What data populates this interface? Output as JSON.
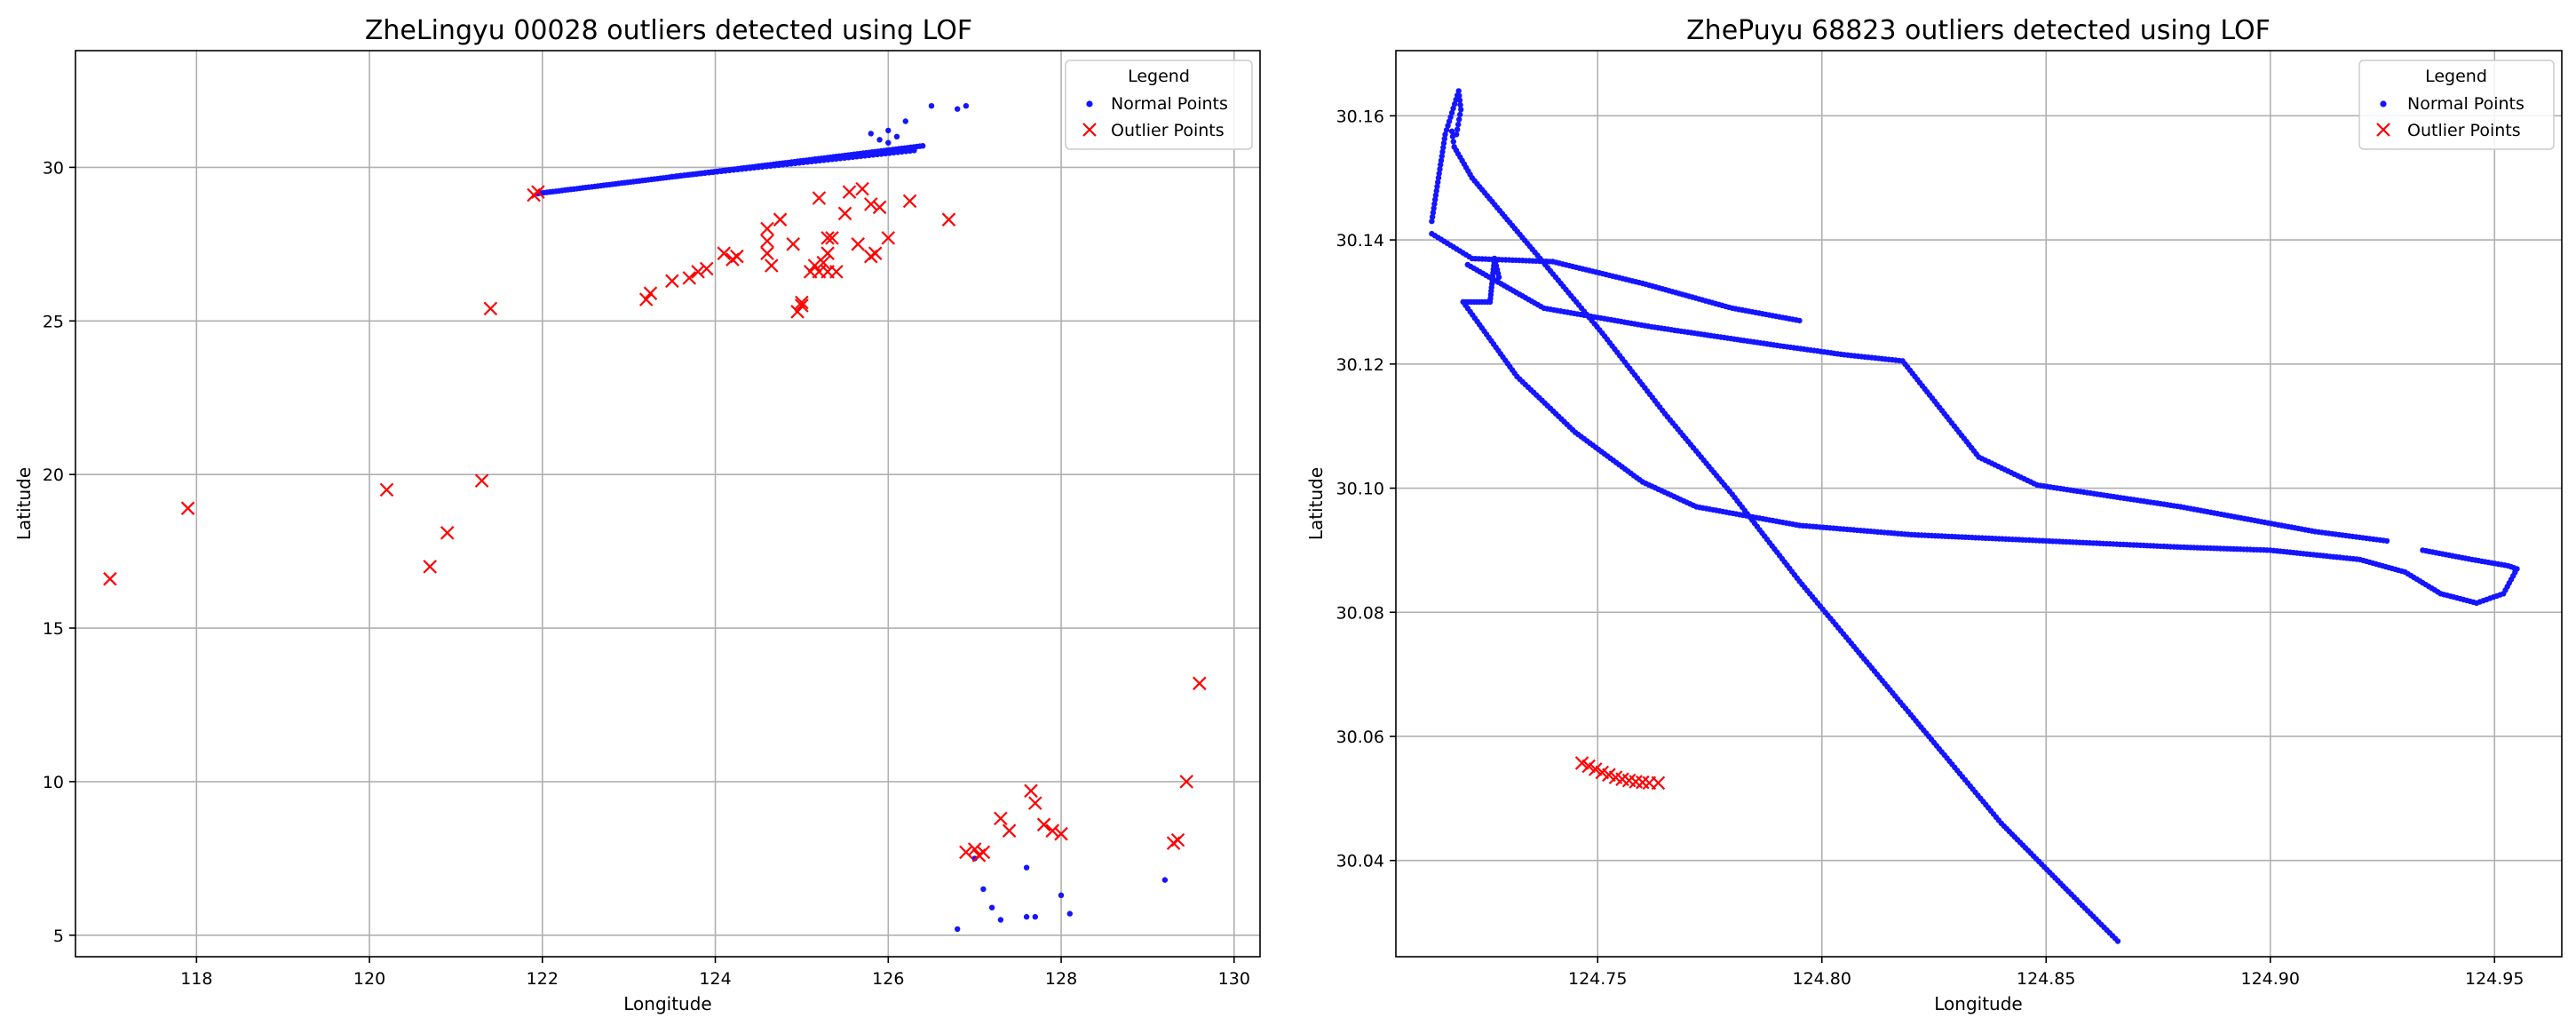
{
  "colors": {
    "normal": "#1515ff",
    "outlier": "#ff0000"
  },
  "chart_data": [
    {
      "type": "scatter",
      "title": "ZheLingyu 00028 outliers detected using LOF",
      "xlabel": "Longitude",
      "ylabel": "Latitude",
      "xlim": [
        116.6,
        130.3
      ],
      "ylim": [
        4.3,
        33.8
      ],
      "xticks": [
        118,
        120,
        122,
        124,
        126,
        128,
        130
      ],
      "xtick_labels": [
        "118",
        "120",
        "122",
        "124",
        "126",
        "128",
        "130"
      ],
      "yticks": [
        5,
        10,
        15,
        20,
        25,
        30
      ],
      "ytick_labels": [
        "5",
        "10",
        "15",
        "20",
        "25",
        "30"
      ],
      "grid": true,
      "legend": {
        "title": "Legend",
        "placement": "top-right",
        "entries": [
          "Normal Points",
          "Outlier Points"
        ]
      },
      "series": [
        {
          "name": "Normal Points",
          "marker": "dot",
          "segments": [
            {
              "from": [
                121.95,
                29.15
              ],
              "to": [
                126.4,
                30.7
              ],
              "n": 130
            },
            {
              "from": [
                123.5,
                29.7
              ],
              "to": [
                126.3,
                30.55
              ],
              "n": 60
            }
          ],
          "points": [
            [
              126.5,
              32.0
            ],
            [
              126.8,
              31.9
            ],
            [
              126.9,
              32.0
            ],
            [
              126.2,
              31.5
            ],
            [
              126.0,
              31.2
            ],
            [
              125.9,
              30.9
            ],
            [
              125.8,
              31.1
            ],
            [
              126.1,
              31.0
            ],
            [
              126.0,
              30.8
            ],
            [
              127.0,
              7.5
            ],
            [
              127.1,
              6.5
            ],
            [
              127.2,
              5.9
            ],
            [
              127.3,
              5.5
            ],
            [
              126.8,
              5.2
            ],
            [
              127.6,
              7.2
            ],
            [
              127.6,
              5.6
            ],
            [
              127.7,
              5.6
            ],
            [
              128.0,
              6.3
            ],
            [
              128.1,
              5.7
            ],
            [
              129.2,
              6.8
            ]
          ]
        },
        {
          "name": "Outlier Points",
          "marker": "x",
          "points": [
            [
              117.0,
              16.6
            ],
            [
              117.9,
              18.9
            ],
            [
              120.2,
              19.5
            ],
            [
              120.7,
              17.0
            ],
            [
              120.9,
              18.1
            ],
            [
              121.3,
              19.8
            ],
            [
              121.4,
              25.4
            ],
            [
              121.9,
              29.1
            ],
            [
              121.95,
              29.2
            ],
            [
              123.2,
              25.7
            ],
            [
              123.25,
              25.9
            ],
            [
              123.5,
              26.3
            ],
            [
              123.7,
              26.4
            ],
            [
              123.8,
              26.6
            ],
            [
              123.9,
              26.7
            ],
            [
              124.1,
              27.2
            ],
            [
              124.2,
              27.0
            ],
            [
              124.25,
              27.1
            ],
            [
              124.6,
              27.2
            ],
            [
              124.6,
              27.6
            ],
            [
              124.6,
              28.0
            ],
            [
              124.65,
              26.8
            ],
            [
              124.75,
              28.3
            ],
            [
              124.9,
              27.5
            ],
            [
              124.95,
              25.3
            ],
            [
              125.0,
              25.5
            ],
            [
              125.0,
              25.6
            ],
            [
              125.1,
              26.6
            ],
            [
              125.15,
              26.8
            ],
            [
              125.2,
              26.6
            ],
            [
              125.25,
              26.9
            ],
            [
              125.3,
              27.2
            ],
            [
              125.3,
              26.6
            ],
            [
              125.4,
              26.6
            ],
            [
              125.2,
              29.0
            ],
            [
              125.3,
              27.7
            ],
            [
              125.35,
              27.7
            ],
            [
              125.5,
              28.5
            ],
            [
              125.55,
              29.2
            ],
            [
              125.7,
              29.3
            ],
            [
              125.65,
              27.5
            ],
            [
              125.8,
              27.1
            ],
            [
              125.85,
              27.2
            ],
            [
              125.8,
              28.8
            ],
            [
              125.9,
              28.7
            ],
            [
              126.0,
              27.7
            ],
            [
              126.25,
              28.9
            ],
            [
              126.7,
              28.3
            ],
            [
              126.9,
              7.7
            ],
            [
              127.0,
              7.8
            ],
            [
              127.05,
              7.6
            ],
            [
              127.1,
              7.7
            ],
            [
              127.3,
              8.8
            ],
            [
              127.4,
              8.4
            ],
            [
              127.65,
              9.7
            ],
            [
              127.7,
              9.3
            ],
            [
              127.8,
              8.6
            ],
            [
              127.9,
              8.4
            ],
            [
              128.0,
              8.3
            ],
            [
              129.3,
              8.0
            ],
            [
              129.35,
              8.1
            ],
            [
              129.45,
              10.0
            ],
            [
              129.6,
              13.2
            ]
          ]
        }
      ]
    },
    {
      "type": "scatter",
      "title": "ZhePuyu 68823 outliers detected using LOF",
      "xlabel": "Longitude",
      "ylabel": "Latitude",
      "xlim": [
        124.705,
        124.965
      ],
      "ylim": [
        30.0245,
        30.1705
      ],
      "xticks": [
        124.75,
        124.8,
        124.85,
        124.9,
        124.95
      ],
      "xtick_labels": [
        "124.75",
        "124.80",
        "124.85",
        "124.90",
        "124.95"
      ],
      "yticks": [
        30.04,
        30.06,
        30.08,
        30.1,
        30.12,
        30.14,
        30.16
      ],
      "ytick_labels": [
        "30.04",
        "30.06",
        "30.08",
        "30.10",
        "30.12",
        "30.14",
        "30.16"
      ],
      "grid": true,
      "legend": {
        "title": "Legend",
        "placement": "top-right",
        "entries": [
          "Normal Points",
          "Outlier Points"
        ]
      },
      "series": [
        {
          "name": "Normal Points",
          "marker": "dot",
          "paths": [
            {
              "points": [
                [
                  124.713,
                  30.143
                ],
                [
                  124.7145,
                  30.15
                ],
                [
                  124.716,
                  30.157
                ],
                [
                  124.719,
                  30.164
                ],
                [
                  124.7195,
                  30.161
                ],
                [
                  124.7185,
                  30.157
                ],
                [
                  124.7175,
                  30.1575
                ],
                [
                  124.718,
                  30.155
                ],
                [
                  124.722,
                  30.15
                ],
                [
                  124.736,
                  30.138
                ],
                [
                  124.751,
                  30.125
                ],
                [
                  124.765,
                  30.112
                ],
                [
                  124.78,
                  30.099
                ],
                [
                  124.795,
                  30.085
                ],
                [
                  124.81,
                  30.072
                ],
                [
                  124.825,
                  30.059
                ],
                [
                  124.84,
                  30.046
                ],
                [
                  124.855,
                  30.035
                ],
                [
                  124.866,
                  30.027
                ]
              ],
              "step": 0.00075
            },
            {
              "points": [
                [
                  124.713,
                  30.141
                ],
                [
                  124.722,
                  30.137
                ],
                [
                  124.74,
                  30.1365
                ],
                [
                  124.76,
                  30.133
                ],
                [
                  124.78,
                  30.129
                ],
                [
                  124.795,
                  30.127
                ]
              ],
              "step": 0.00075
            },
            {
              "points": [
                [
                  124.721,
                  30.136
                ],
                [
                  124.738,
                  30.129
                ],
                [
                  124.762,
                  30.126
                ],
                [
                  124.79,
                  30.123
                ],
                [
                  124.805,
                  30.1215
                ],
                [
                  124.818,
                  30.1205
                ],
                [
                  124.835,
                  30.105
                ],
                [
                  124.848,
                  30.1005
                ],
                [
                  124.88,
                  30.097
                ],
                [
                  124.91,
                  30.093
                ],
                [
                  124.926,
                  30.0915
                ]
              ],
              "step": 0.00075
            },
            {
              "points": [
                [
                  124.72,
                  30.13
                ],
                [
                  124.726,
                  30.13
                ],
                [
                  124.727,
                  30.137
                ],
                [
                  124.728,
                  30.134
                ]
              ],
              "step": 0.0006
            },
            {
              "points": [
                [
                  124.72,
                  30.13
                ],
                [
                  124.732,
                  30.118
                ],
                [
                  124.745,
                  30.109
                ],
                [
                  124.76,
                  30.101
                ],
                [
                  124.772,
                  30.097
                ],
                [
                  124.795,
                  30.094
                ],
                [
                  124.82,
                  30.0925
                ],
                [
                  124.85,
                  30.0915
                ],
                [
                  124.88,
                  30.0905
                ],
                [
                  124.9,
                  30.09
                ],
                [
                  124.92,
                  30.0885
                ],
                [
                  124.93,
                  30.0865
                ],
                [
                  124.938,
                  30.083
                ],
                [
                  124.946,
                  30.0815
                ],
                [
                  124.952,
                  30.083
                ],
                [
                  124.955,
                  30.087
                ],
                [
                  124.953,
                  30.0875
                ],
                [
                  124.945,
                  30.0885
                ],
                [
                  124.934,
                  30.09
                ]
              ],
              "step": 0.00075
            }
          ]
        },
        {
          "name": "Outlier Points",
          "marker": "x",
          "points": [
            [
              124.7465,
              30.0557
            ],
            [
              124.748,
              30.0552
            ],
            [
              124.7495,
              30.0547
            ],
            [
              124.751,
              30.0542
            ],
            [
              124.7525,
              30.0538
            ],
            [
              124.754,
              30.0534
            ],
            [
              124.7555,
              30.0531
            ],
            [
              124.757,
              30.0529
            ],
            [
              124.7585,
              30.0527
            ],
            [
              124.76,
              30.0526
            ],
            [
              124.7615,
              30.0525
            ],
            [
              124.7635,
              30.0525
            ]
          ]
        }
      ]
    }
  ]
}
